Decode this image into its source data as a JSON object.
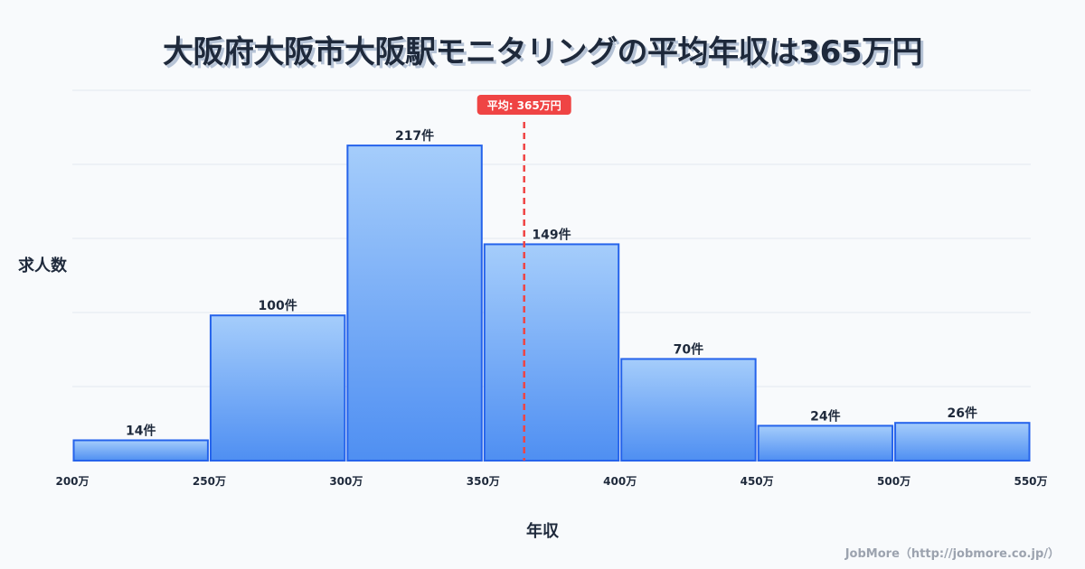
{
  "chart_data": {
    "type": "bar",
    "title": "大阪府大阪市大阪駅モニタリングの平均年収は365万円",
    "xlabel": "年収",
    "ylabel": "求人数",
    "bins": [
      [
        200,
        250
      ],
      [
        250,
        300
      ],
      [
        300,
        350
      ],
      [
        350,
        400
      ],
      [
        400,
        450
      ],
      [
        450,
        500
      ],
      [
        500,
        550
      ]
    ],
    "values": [
      14,
      100,
      217,
      149,
      70,
      24,
      26
    ],
    "data_labels": [
      "14件",
      "100件",
      "217件",
      "149件",
      "70件",
      "24件",
      "26件"
    ],
    "x_ticks": [
      200,
      250,
      300,
      350,
      400,
      450,
      500,
      550
    ],
    "x_tick_labels": [
      "200万",
      "250万",
      "300万",
      "350万",
      "400万",
      "450万",
      "500万",
      "550万"
    ],
    "xlim": [
      200,
      550
    ],
    "ylim": [
      0,
      255
    ],
    "grid": true,
    "mean": 365,
    "mean_label": "平均: 365万円",
    "colors": {
      "bar_top": "#a5cdfb",
      "bar_bottom": "#4f8ff2",
      "bar_border": "#2563eb",
      "mean": "#ef4444",
      "grid": "#e2e8f0"
    }
  },
  "footer": "JobMore（http://jobmore.co.jp/）"
}
